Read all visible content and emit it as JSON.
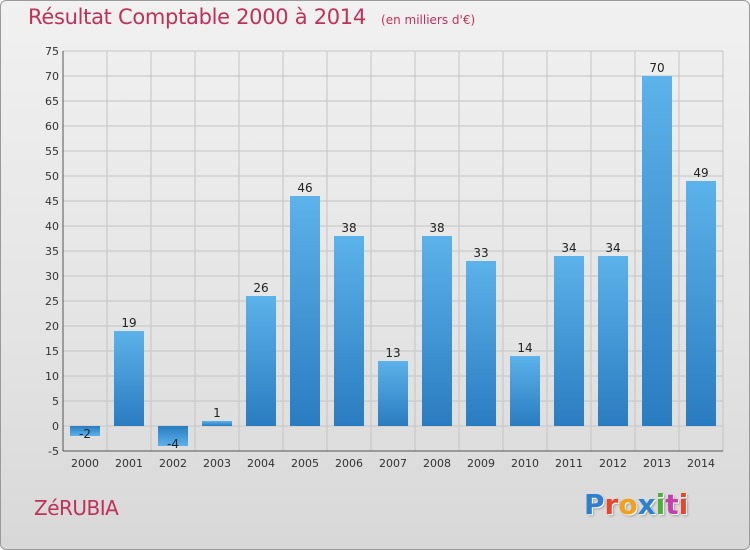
{
  "chart_data": {
    "type": "bar",
    "title": "Résultat Comptable 2000 à 2014",
    "subtitle": "(en milliers d'€)",
    "categories": [
      "2000",
      "2001",
      "2002",
      "2003",
      "2004",
      "2005",
      "2006",
      "2007",
      "2008",
      "2009",
      "2010",
      "2011",
      "2012",
      "2013",
      "2014"
    ],
    "values": [
      -2,
      19,
      -4,
      1,
      26,
      46,
      38,
      13,
      38,
      33,
      14,
      34,
      34,
      70,
      49
    ],
    "data_labels": [
      "-2",
      "19",
      "-4",
      "1",
      "26",
      "46",
      "38",
      "13",
      "38",
      "33",
      "14",
      "34",
      "34",
      "70",
      "49"
    ],
    "ylim": [
      -5,
      75
    ],
    "yticks": [
      -5,
      0,
      5,
      10,
      15,
      20,
      25,
      30,
      35,
      40,
      45,
      50,
      55,
      60,
      65,
      70,
      75
    ],
    "grid": true,
    "bar_color": "#3d9ee0",
    "bar_color_dark": "#1f6fb0"
  },
  "footer": {
    "commune": "ZéRUBIA",
    "brand": "Proxiti",
    "brand_colors": [
      "#2f7fd0",
      "#e8452c",
      "#f2a21a",
      "#2f7fd0",
      "#4caf3a",
      "#c73fae",
      "#e8452c"
    ]
  }
}
